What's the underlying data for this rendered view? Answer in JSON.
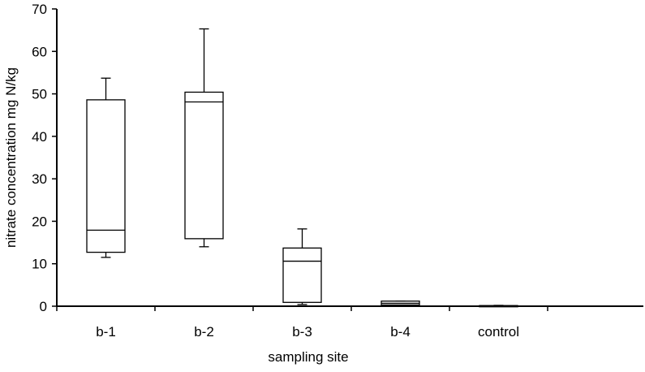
{
  "chart_data": {
    "type": "box",
    "title": "",
    "xlabel": "sampling site",
    "ylabel": "nitrate concentration mg N/kg",
    "ylim": [
      0,
      70
    ],
    "yticks": [
      0,
      10,
      20,
      30,
      40,
      50,
      60,
      70
    ],
    "grid": false,
    "legend": "none",
    "categories": [
      "b-1",
      "b-2",
      "b-3",
      "b-4",
      "control"
    ],
    "boxes": [
      {
        "label": "b-1",
        "whisker_low": 11.5,
        "q1": 12.7,
        "median": 17.9,
        "q3": 48.6,
        "whisker_high": 53.7
      },
      {
        "label": "b-2",
        "whisker_low": 14.0,
        "q1": 15.9,
        "median": 48.1,
        "q3": 50.4,
        "whisker_high": 65.3
      },
      {
        "label": "b-3",
        "whisker_low": 0.4,
        "q1": 0.9,
        "median": 10.6,
        "q3": 13.7,
        "whisker_high": 18.2
      },
      {
        "label": "b-4",
        "whisker_low": 0.3,
        "q1": 0.3,
        "median": 0.7,
        "q3": 1.2,
        "whisker_high": 1.2
      },
      {
        "label": "control",
        "whisker_low": 0.0,
        "q1": 0.05,
        "median": 0.1,
        "q3": 0.15,
        "whisker_high": 0.2
      }
    ],
    "colors": {
      "box_fill": "#ffffff",
      "stroke": "#000000"
    }
  }
}
